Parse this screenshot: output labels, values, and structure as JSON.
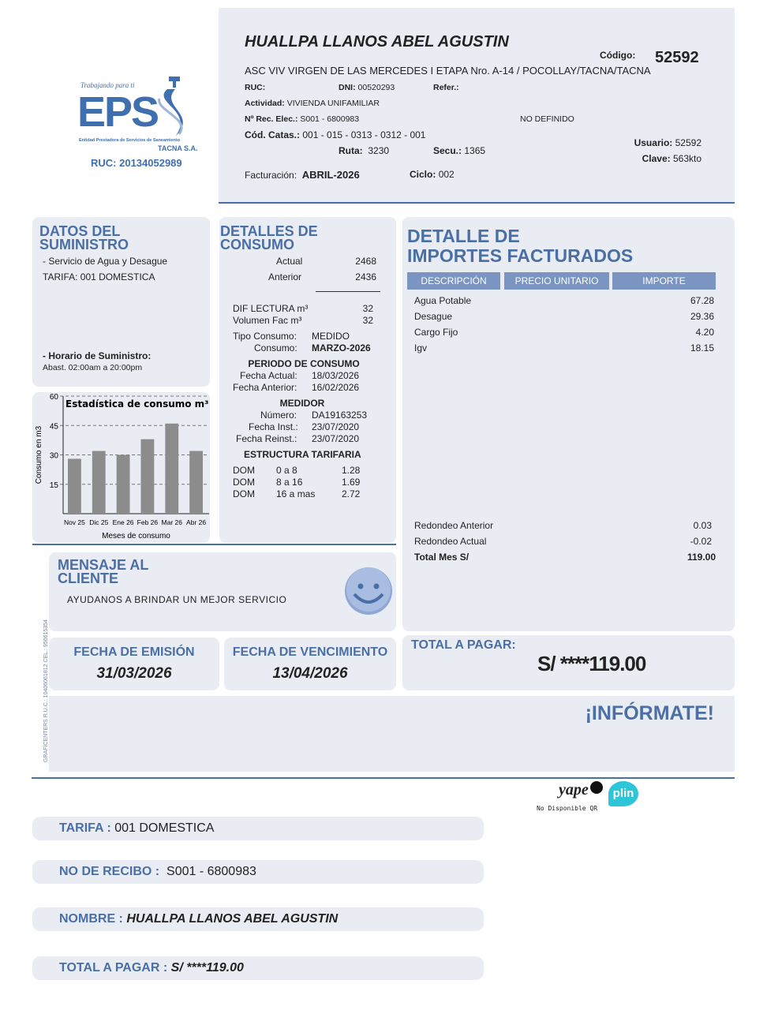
{
  "logo": {
    "tagline": "Trabajando para ti",
    "brand": "EPS",
    "subtitle": "Entidad Prestadora de Servicios de Saneamiento",
    "company": "TACNA S.A.",
    "ruc": "RUC: 20134052989"
  },
  "header": {
    "name": "HUALLPA LLANOS ABEL AGUSTIN",
    "codigo_label": "Código:",
    "codigo": "52592",
    "address": "ASC VIV VIRGEN DE LAS MERCEDES I ETAPA Nro. A-14 / POCOLLAY/TACNA/TACNA",
    "ruc_label": "RUC:",
    "ruc": "",
    "dni_label": "DNI:",
    "dni": "00520293",
    "refer_label": "Refer.:",
    "refer": "",
    "actividad_label": "Actividad:",
    "actividad": "VIVIENDA UNIFAMILIAR",
    "rec_label": "Nº Rec. Elec.:",
    "rec": "S001 - 6800983",
    "no_definido": "NO DEFINIDO",
    "catas_label": "Cód. Catas.:",
    "catas": "001 - 015 - 0313 - 0312 - 001",
    "ruta_label": "Ruta:",
    "ruta": "3230",
    "secu_label": "Secu.:",
    "secu": "1365",
    "usuario_label": "Usuario:",
    "usuario": "52592",
    "clave_label": "Clave:",
    "clave": "563kto",
    "fact_label": "Facturación:",
    "fact": "ABRIL-2026",
    "ciclo_label": "Ciclo:",
    "ciclo": "002"
  },
  "suministro": {
    "title1": "DATOS DEL",
    "title2": "SUMINISTRO",
    "servicio": "- Servicio de Agua y Desague",
    "tarifa": "TARIFA: 001 DOMESTICA",
    "horario_label": "- Horario de Suministro:",
    "horario": "Abast. 02:00am a 20:00pm"
  },
  "chart_data": {
    "type": "bar",
    "title": "Estadística de consumo m³",
    "xlabel": "Meses de consumo",
    "ylabel": "Consumo en m3",
    "categories": [
      "Nov 25",
      "Dic 25",
      "Ene 26",
      "Feb 26",
      "Mar 26",
      "Abr 26"
    ],
    "values": [
      28,
      32,
      30,
      38,
      46,
      32
    ],
    "ylim": [
      0,
      60
    ],
    "yticks": [
      15,
      30,
      45,
      60
    ],
    "grid": true,
    "bar_color": "#8c8c8c"
  },
  "consumo": {
    "title1": "DETALLES DE",
    "title2": "CONSUMO",
    "actual_label": "Actual",
    "actual": "2468",
    "anterior_label": "Anterior",
    "anterior": "2436",
    "dif_label": "DIF LECTURA m³",
    "dif": "32",
    "vol_label": "Volumen Fac m³",
    "vol": "32",
    "tipo_label": "Tipo Consumo:",
    "tipo": "MEDIDO",
    "cons_label": "Consumo:",
    "cons": "MARZO-2026",
    "periodo": "PERIODO DE CONSUMO",
    "fa_label": "Fecha Actual:",
    "fa": "18/03/2026",
    "fan_label": "Fecha Anterior:",
    "fan": "16/02/2026",
    "medidor": "MEDIDOR",
    "num_label": "Número:",
    "num": "DA19163253",
    "fi_label": "Fecha Inst.:",
    "fi": "23/07/2020",
    "fr_label": "Fecha Reinst.:",
    "fr": "23/07/2020",
    "estructura": "ESTRUCTURA TARIFARIA",
    "tarifas": [
      {
        "c": "DOM",
        "r": "0 a 8",
        "v": "1.28"
      },
      {
        "c": "DOM",
        "r": "8 a 16",
        "v": "1.69"
      },
      {
        "c": "DOM",
        "r": "16 a mas",
        "v": "2.72"
      }
    ]
  },
  "importes": {
    "title1": "DETALLE DE",
    "title2": "IMPORTES FACTURADOS",
    "cols": [
      "DESCRIPCIÓN",
      "PRECIO UNITARIO",
      "IMPORTE"
    ],
    "items": [
      {
        "d": "Agua Potable",
        "v": "67.28"
      },
      {
        "d": "Desague",
        "v": "29.36"
      },
      {
        "d": "Cargo Fijo",
        "v": "4.20"
      },
      {
        "d": "Igv",
        "v": "18.15"
      }
    ],
    "redondeo_ant_label": "Redondeo Anterior",
    "redondeo_ant": "0.03",
    "redondeo_act_label": "Redondeo Actual",
    "redondeo_act": "-0.02",
    "total_label": "Total Mes S/",
    "total": "119.00"
  },
  "mensaje": {
    "title1": "MENSAJE AL",
    "title2": "CLIENTE",
    "text": "AYUDANOS A BRINDAR UN MEJOR SERVICIO"
  },
  "printer": "GRAFICENTERS R.U.C.: 10406061812 CEL.: 950615354",
  "emision": {
    "label": "FECHA DE EMISIÓN",
    "value": "31/03/2026"
  },
  "vencimiento": {
    "label": "FECHA DE VENCIMIENTO",
    "value": "13/04/2026"
  },
  "total": {
    "label": "TOTAL A PAGAR:",
    "value": "S/ ****119.00"
  },
  "informate": "¡INFÓRMATE!",
  "payment": {
    "yape": "yape",
    "plin": "plin",
    "qr": "No Disponible QR"
  },
  "stub": [
    {
      "l": "TARIFA :",
      "v": "001 DOMESTICA"
    },
    {
      "l": "NO DE RECIBO :",
      "v": "S001 - 6800983"
    },
    {
      "l": "NOMBRE :",
      "v": "HUALLPA LLANOS ABEL AGUSTIN"
    },
    {
      "l": "TOTAL A PAGAR :",
      "v": "S/ ****119.00"
    }
  ]
}
